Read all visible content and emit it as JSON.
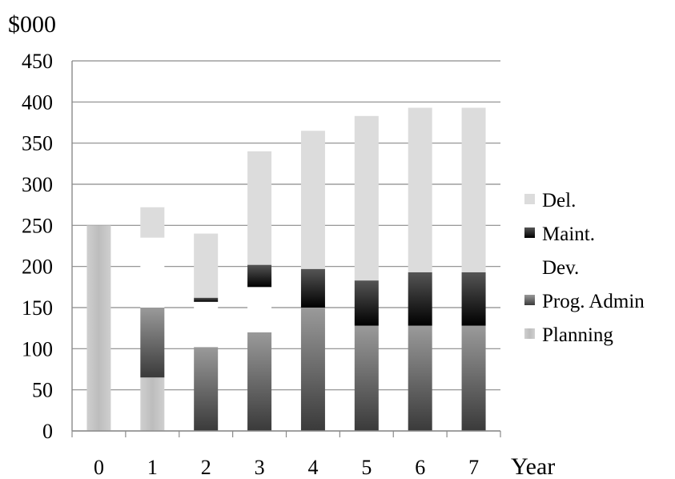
{
  "chart_data": {
    "type": "bar",
    "stacked": true,
    "title": "",
    "ylabel": "$000",
    "xlabel": "Year",
    "categories": [
      "0",
      "1",
      "2",
      "3",
      "4",
      "5",
      "6",
      "7"
    ],
    "ylim": [
      0,
      450
    ],
    "yticks": [
      "0",
      "50",
      "100",
      "150",
      "200",
      "250",
      "300",
      "350",
      "400",
      "450"
    ],
    "grid": true,
    "legend_position": "right",
    "series": [
      {
        "name": "Planning",
        "values": [
          250,
          65,
          0,
          0,
          0,
          0,
          0,
          0
        ],
        "color": "#bdbdbd"
      },
      {
        "name": "Prog. Admin",
        "values": [
          0,
          85,
          102,
          120,
          150,
          128,
          128,
          128
        ],
        "color": "#6e6e6e"
      },
      {
        "name": "Dev.",
        "values": [
          0,
          85,
          55,
          55,
          0,
          0,
          0,
          0
        ],
        "color": "#ffffff"
      },
      {
        "name": "Maint.",
        "values": [
          0,
          0,
          5,
          27,
          47,
          55,
          65,
          65
        ],
        "color": "#1a1a1a"
      },
      {
        "name": "Del.",
        "values": [
          0,
          37,
          78,
          138,
          168,
          200,
          200,
          200
        ],
        "color": "#dcdcdc"
      }
    ]
  }
}
